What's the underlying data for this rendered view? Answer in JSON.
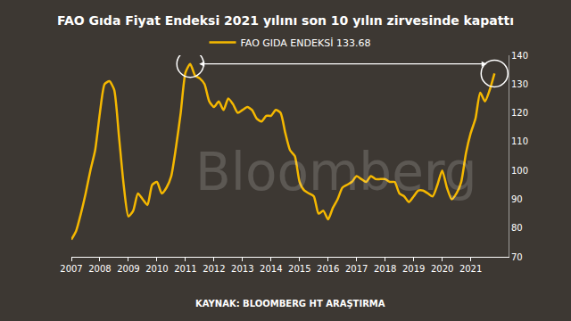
{
  "chart_data": {
    "type": "line",
    "title": "FAO Gıda Fiyat Endeksi 2021 yılını son 10 yılın zirvesinde kapattı",
    "source": "KAYNAK: BLOOMBERG HT ARAŞTIRMA",
    "annotations": [
      {
        "text": "Bloomberg"
      }
    ],
    "categories": [
      "2007",
      null,
      null,
      null,
      null,
      null,
      "2008",
      null,
      null,
      null,
      null,
      null,
      "2009",
      null,
      null,
      null,
      null,
      null,
      "2010",
      null,
      null,
      null,
      null,
      null,
      "2011",
      null,
      null,
      null,
      null,
      null,
      "2012",
      null,
      null,
      null,
      null,
      null,
      "2013",
      null,
      null,
      null,
      null,
      null,
      "2014",
      null,
      null,
      null,
      null,
      null,
      "2015",
      null,
      null,
      null,
      null,
      null,
      "2016",
      null,
      null,
      null,
      null,
      null,
      "2017",
      null,
      null,
      null,
      null,
      null,
      "2018",
      null,
      null,
      null,
      null,
      null,
      "2019",
      null,
      null,
      null,
      null,
      null,
      "2020",
      null,
      null,
      null,
      null,
      null,
      "2021",
      null,
      null,
      null,
      null,
      null
    ],
    "series": [
      {
        "name": "FAO GIDA ENDEKSİ 133.68",
        "color": "#f5b800",
        "values": [
          76,
          79,
          85,
          92,
          100,
          107,
          120,
          130,
          131,
          128,
          112,
          95,
          84,
          86,
          92,
          90,
          88,
          95,
          96,
          92,
          94,
          98,
          108,
          120,
          134,
          137,
          133,
          132,
          130,
          124,
          122,
          124,
          121,
          125,
          123,
          120,
          121,
          122,
          121,
          118,
          117,
          119,
          119,
          121,
          120,
          113,
          107,
          105,
          96,
          93,
          92,
          91,
          85,
          86,
          83,
          87,
          90,
          94,
          95,
          96,
          98,
          97,
          96,
          98,
          97,
          97,
          97,
          96,
          96,
          92,
          91,
          89,
          91,
          93,
          93,
          92,
          91,
          95,
          100,
          94,
          90,
          92,
          96,
          106,
          113,
          118,
          127,
          124,
          128,
          133.68
        ]
      }
    ],
    "ylim": [
      70,
      140
    ],
    "yticks": [
      70,
      80,
      90,
      100,
      110,
      120,
      130,
      140
    ],
    "grid": false,
    "legend": "top"
  }
}
